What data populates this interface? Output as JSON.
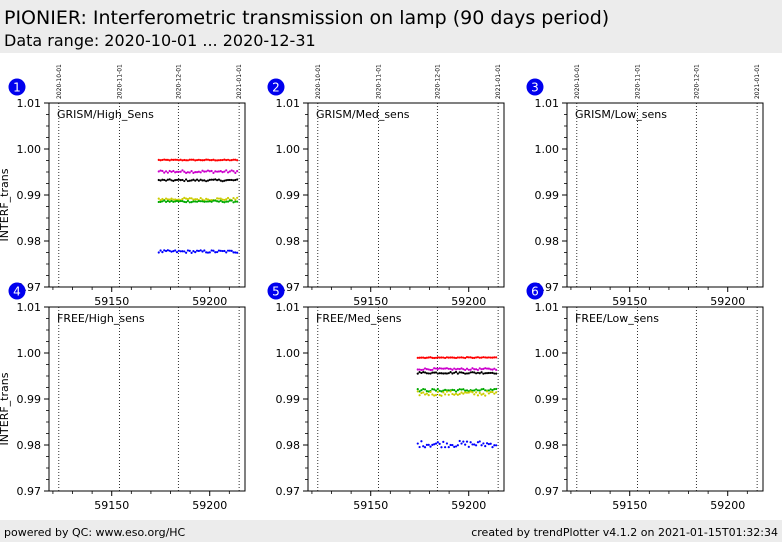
{
  "header": {
    "title": "PIONIER: Interferometric transmission on lamp (90 days period)",
    "subtitle": "Data range: 2020-10-01 ... 2020-12-31"
  },
  "footer": {
    "left": "powered by QC: www.eso.org/HC",
    "right": "created by trendPlotter v4.1.2 on 2021-01-15T01:32:34"
  },
  "chart_data": {
    "type": "scatter",
    "xlim": [
      59118,
      59218
    ],
    "ylim": [
      0.97,
      1.01
    ],
    "x_ticks": [
      59150,
      59200
    ],
    "x_tick_labels": [
      "59150",
      "59200"
    ],
    "y_ticks": [
      0.97,
      0.98,
      0.99,
      1.0,
      1.01
    ],
    "y_tick_labels": [
      "0.97",
      "0.98",
      "0.99",
      "1.00",
      "1.01"
    ],
    "date_markers": [
      {
        "x": 59123,
        "label": "2020-10-01"
      },
      {
        "x": 59154,
        "label": "2020-11-01"
      },
      {
        "x": 59184,
        "label": "2020-12-01"
      },
      {
        "x": 59215,
        "label": "2021-01-01"
      }
    ],
    "ylabel": "INTERF_trans",
    "grid": false,
    "colors": {
      "red": "#ff0000",
      "magenta": "#cc00cc",
      "black": "#000000",
      "yellow": "#cccc00",
      "green": "#00aa00",
      "blue": "#0000ff"
    },
    "panels": [
      {
        "number": "1",
        "label": "GRISM/High_Sens",
        "series": [
          {
            "color": "red",
            "x_range": [
              59174,
              59214
            ],
            "count": 44,
            "y": 0.9976,
            "scatter": 0.0001
          },
          {
            "color": "magenta",
            "x_range": [
              59174,
              59214
            ],
            "count": 44,
            "y": 0.9951,
            "scatter": 0.0003
          },
          {
            "color": "black",
            "x_range": [
              59174,
              59214
            ],
            "count": 44,
            "y": 0.9932,
            "scatter": 0.0002
          },
          {
            "color": "yellow",
            "x_range": [
              59174,
              59214
            ],
            "count": 44,
            "y": 0.9891,
            "scatter": 0.0003
          },
          {
            "color": "green",
            "x_range": [
              59174,
              59214
            ],
            "count": 44,
            "y": 0.9886,
            "scatter": 0.0002
          },
          {
            "color": "blue",
            "x_range": [
              59174,
              59214
            ],
            "count": 44,
            "y": 0.9777,
            "scatter": 0.0003
          }
        ]
      },
      {
        "number": "2",
        "label": "GRISM/Med_sens",
        "series": []
      },
      {
        "number": "3",
        "label": "GRISM/Low_sens",
        "series": []
      },
      {
        "number": "4",
        "label": "FREE/High_sens",
        "series": []
      },
      {
        "number": "5",
        "label": "FREE/Med_sens",
        "series": [
          {
            "color": "red",
            "x_range": [
              59174,
              59214
            ],
            "count": 44,
            "y": 0.999,
            "scatter": 0.0001
          },
          {
            "color": "magenta",
            "x_range": [
              59174,
              59214
            ],
            "count": 44,
            "y": 0.9965,
            "scatter": 0.0002
          },
          {
            "color": "black",
            "x_range": [
              59174,
              59214
            ],
            "count": 44,
            "y": 0.9957,
            "scatter": 0.0002
          },
          {
            "color": "green",
            "x_range": [
              59174,
              59214
            ],
            "count": 44,
            "y": 0.9919,
            "scatter": 0.0003
          },
          {
            "color": "yellow",
            "x_range": [
              59174,
              59214
            ],
            "count": 44,
            "y": 0.9912,
            "scatter": 0.0005
          },
          {
            "color": "blue",
            "x_range": [
              59174,
              59214
            ],
            "count": 44,
            "y": 0.9802,
            "scatter": 0.0007
          }
        ]
      },
      {
        "number": "6",
        "label": "FREE/Low_sens",
        "series": []
      }
    ]
  }
}
